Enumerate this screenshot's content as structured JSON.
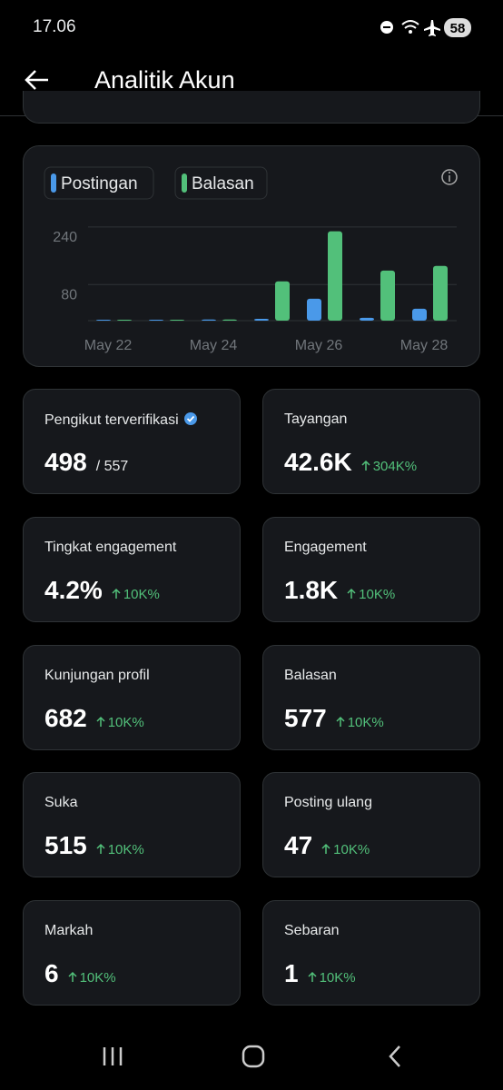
{
  "status_bar": {
    "time": "17.06",
    "battery": "58"
  },
  "header": {
    "title": "Analitik Akun"
  },
  "chart": {
    "type": "bar",
    "categories": [
      "May 22",
      null,
      "May 24",
      null,
      "May 26",
      null,
      "May 28"
    ],
    "series": [
      {
        "name": "Postingan",
        "color": "#4a99e9",
        "values": [
          0,
          2,
          3,
          5,
          61,
          8,
          33
        ]
      },
      {
        "name": "Balasan",
        "color": "#52c07a",
        "values": [
          0,
          0,
          3,
          109,
          248,
          139,
          152
        ]
      }
    ],
    "ylim": [
      0,
      280
    ],
    "yticks": [
      80,
      240
    ],
    "grid": true
  },
  "cards": [
    {
      "label": "Pengikut terverifikasi",
      "value": "498",
      "total": "/ 557"
    },
    {
      "label": "Tayangan",
      "value": "42.6K",
      "change": "304K%"
    },
    {
      "label": "Tingkat engagement",
      "value": "4.2%",
      "change": "10K%"
    },
    {
      "label": "Engagement",
      "value": "1.8K",
      "change": "10K%"
    },
    {
      "label": "Kunjungan profil",
      "value": "682",
      "change": "10K%"
    },
    {
      "label": "Balasan",
      "value": "577",
      "change": "10K%"
    },
    {
      "label": "Suka",
      "value": "515",
      "change": "10K%"
    },
    {
      "label": "Posting ulang",
      "value": "47",
      "change": "10K%"
    },
    {
      "label": "Markah",
      "value": "6",
      "change": "10K%"
    },
    {
      "label": "Sebaran",
      "value": "1",
      "change": "10K%"
    }
  ]
}
